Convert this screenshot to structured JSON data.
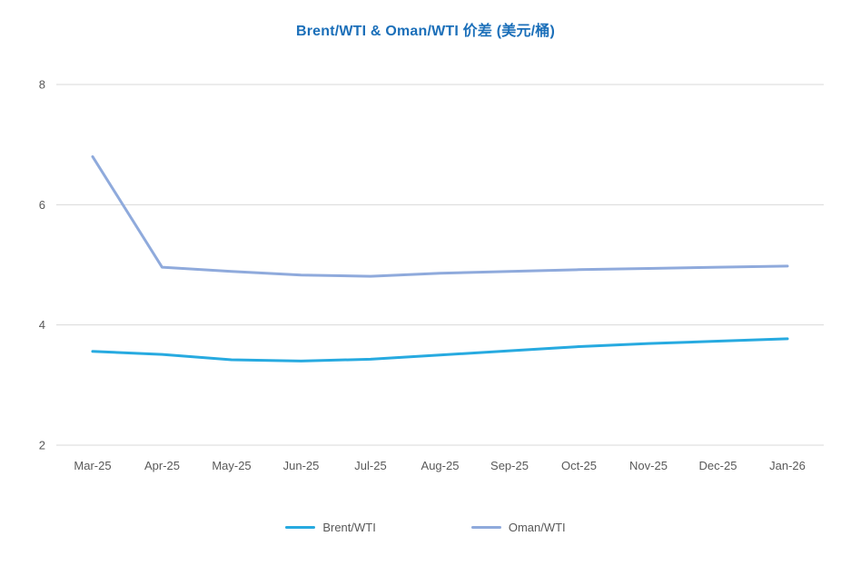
{
  "chart_data": {
    "type": "line",
    "title": "Brent/WTI & Oman/WTI 价差 (美元/桶)",
    "xlabel": "",
    "ylabel": "",
    "categories": [
      "Mar-25",
      "Apr-25",
      "May-25",
      "Jun-25",
      "Jul-25",
      "Aug-25",
      "Sep-25",
      "Oct-25",
      "Nov-25",
      "Dec-25",
      "Jan-26"
    ],
    "series": [
      {
        "name": "Brent/WTI",
        "color": "#27AAE0",
        "values": [
          3.56,
          3.51,
          3.42,
          3.4,
          3.43,
          3.5,
          3.57,
          3.64,
          3.69,
          3.73,
          3.77
        ]
      },
      {
        "name": "Oman/WTI",
        "color": "#8FAADC",
        "values": [
          6.8,
          4.96,
          4.89,
          4.83,
          4.81,
          4.86,
          4.89,
          4.92,
          4.94,
          4.96,
          4.98
        ]
      }
    ],
    "ylim": [
      2,
      8
    ],
    "yticks": [
      2,
      4,
      6,
      8
    ],
    "grid": "horizontal-only",
    "legend_position": "bottom-center",
    "colors": {
      "title": "#1B6FB9",
      "axis_text": "#595959",
      "gridline": "#D9D9D9",
      "background": "#FFFFFF"
    }
  }
}
